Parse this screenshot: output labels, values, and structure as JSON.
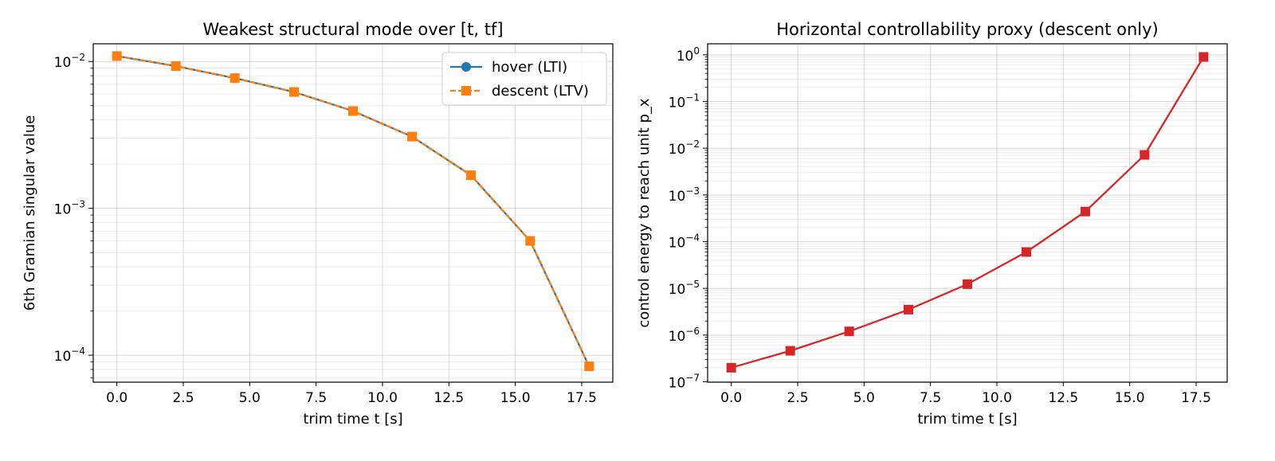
{
  "chart_data": [
    {
      "type": "line",
      "title": "Weakest structural mode over [t, tf]",
      "xlabel": "trim time t [s]",
      "ylabel": "6th Gramian singular value",
      "yscale": "log",
      "xlim": [
        -0.89,
        18.67
      ],
      "ylim": [
        6.55e-05,
        0.0132
      ],
      "xticks": [
        "0.0",
        "2.5",
        "5.0",
        "7.5",
        "10.0",
        "12.5",
        "15.0",
        "17.5"
      ],
      "xtick_values": [
        0,
        2.5,
        5,
        7.5,
        10,
        12.5,
        15,
        17.5
      ],
      "yticks": [
        {
          "value": 0.01,
          "base": "10",
          "exp": "−2"
        },
        {
          "value": 0.001,
          "base": "10",
          "exp": "−3"
        },
        {
          "value": 0.0001,
          "base": "10",
          "exp": "−4"
        }
      ],
      "grid": true,
      "legend": "top-right",
      "series": [
        {
          "name": "hover (LTI)",
          "color": "#1f77b4",
          "marker": "circle",
          "linestyle": "solid",
          "x": [
            0,
            2.22,
            4.44,
            6.67,
            8.89,
            11.11,
            13.33,
            15.56,
            17.78
          ],
          "y": [
            0.0109,
            0.0093,
            0.0077,
            0.0062,
            0.0046,
            0.00308,
            0.00168,
            0.0006,
            8.4e-05
          ]
        },
        {
          "name": "descent (LTV)",
          "color": "#ff7f0e",
          "marker": "square",
          "linestyle": "dashed",
          "x": [
            0,
            2.22,
            4.44,
            6.67,
            8.89,
            11.11,
            13.33,
            15.56,
            17.78
          ],
          "y": [
            0.0109,
            0.0093,
            0.0077,
            0.0062,
            0.0046,
            0.00308,
            0.00168,
            0.0006,
            8.4e-05
          ]
        }
      ]
    },
    {
      "type": "line",
      "title": "Horizontal controllability proxy (descent only)",
      "xlabel": "trim time t [s]",
      "ylabel": "control energy to reach unit p_x",
      "yscale": "log",
      "xlim": [
        -0.89,
        18.67
      ],
      "ylim": [
        9.8e-08,
        1.72
      ],
      "xticks": [
        "0.0",
        "2.5",
        "5.0",
        "7.5",
        "10.0",
        "12.5",
        "15.0",
        "17.5"
      ],
      "xtick_values": [
        0,
        2.5,
        5,
        7.5,
        10,
        12.5,
        15,
        17.5
      ],
      "yticks": [
        {
          "value": 1,
          "base": "10",
          "exp": "0"
        },
        {
          "value": 0.1,
          "base": "10",
          "exp": "−1"
        },
        {
          "value": 0.01,
          "base": "10",
          "exp": "−2"
        },
        {
          "value": 0.001,
          "base": "10",
          "exp": "−3"
        },
        {
          "value": 0.0001,
          "base": "10",
          "exp": "−4"
        },
        {
          "value": 1e-05,
          "base": "10",
          "exp": "−5"
        },
        {
          "value": 1e-06,
          "base": "10",
          "exp": "−6"
        },
        {
          "value": 1e-07,
          "base": "10",
          "exp": "−7"
        }
      ],
      "grid": true,
      "series": [
        {
          "color": "#d62728",
          "marker": "square",
          "linestyle": "solid",
          "x": [
            0,
            2.22,
            4.44,
            6.67,
            8.89,
            11.11,
            13.33,
            15.56,
            17.78
          ],
          "y": [
            2e-07,
            4.6e-07,
            1.2e-06,
            3.5e-06,
            1.23e-05,
            6e-05,
            0.00044,
            0.0072,
            0.9
          ]
        }
      ]
    }
  ]
}
